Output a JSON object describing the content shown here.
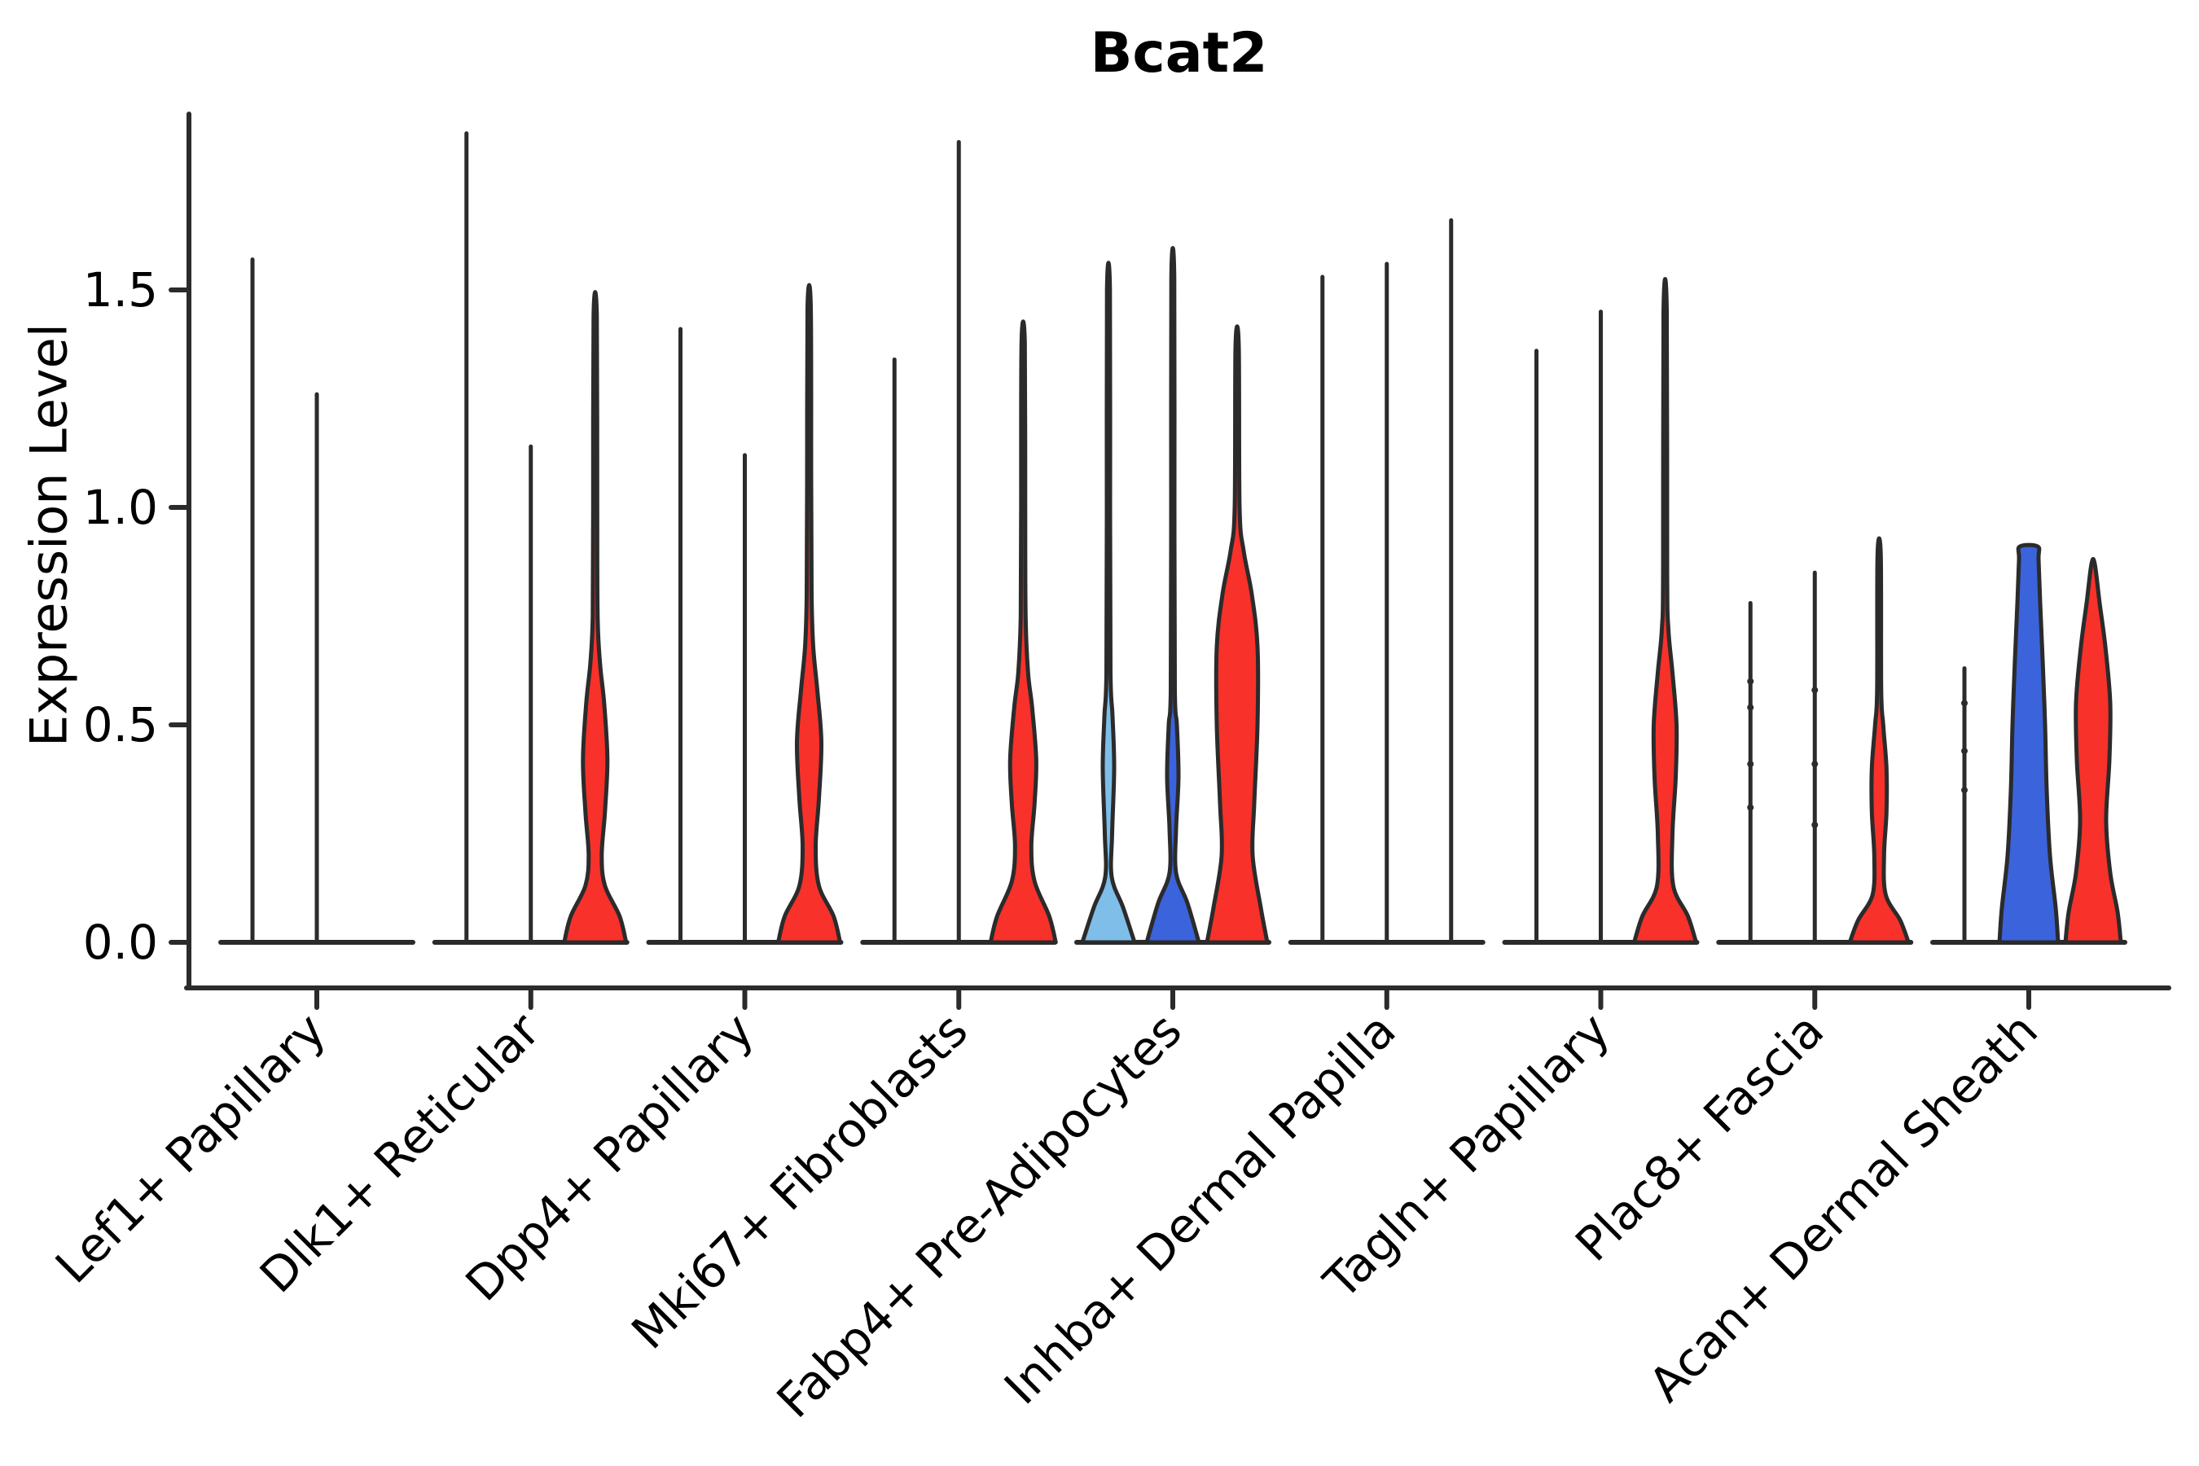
{
  "chart_data": {
    "type": "violin",
    "title": "Bcat2",
    "ylabel": "Expression Level",
    "ylim": [
      0,
      1.9
    ],
    "y_ticks": [
      0.0,
      0.5,
      1.0,
      1.5
    ],
    "y_tick_labels": [
      "0.0",
      "0.5",
      "1.0",
      "1.5"
    ],
    "grid": false,
    "legend": "none",
    "categories": [
      "Lef1+ Papillary",
      "Dlk1+ Reticular",
      "Dpp4+ Papillary",
      "Mki67+ Fibroblasts",
      "Fabp4+ Pre-Adipocytes",
      "Inhba+ Dermal Papilla",
      "Tagln+ Papillary",
      "Plac8+ Fascia",
      "Acan+ Dermal Sheath"
    ],
    "groups": [
      {
        "category": "Lef1+ Papillary",
        "violins": [
          {
            "shape": "spike",
            "max": 1.57,
            "fill": "none"
          },
          {
            "shape": "spike",
            "max": 1.26,
            "fill": "none"
          },
          {
            "shape": "flat",
            "max": 0.0,
            "fill": "none"
          }
        ]
      },
      {
        "category": "Dlk1+ Reticular",
        "violins": [
          {
            "shape": "spike",
            "max": 1.86,
            "fill": "none"
          },
          {
            "shape": "spike",
            "max": 1.14,
            "fill": "none"
          },
          {
            "shape": "violin",
            "max": 1.44,
            "fill": "red",
            "profile": [
              [
                0,
                38
              ],
              [
                0.06,
                30
              ],
              [
                0.13,
                12
              ],
              [
                0.2,
                8
              ],
              [
                0.3,
                12
              ],
              [
                0.42,
                15
              ],
              [
                0.55,
                11
              ],
              [
                0.64,
                6
              ],
              [
                0.75,
                3
              ],
              [
                1.0,
                2.5
              ],
              [
                1.44,
                2
              ]
            ]
          }
        ]
      },
      {
        "category": "Dpp4+ Papillary",
        "violins": [
          {
            "shape": "spike",
            "max": 1.41,
            "fill": "none"
          },
          {
            "shape": "spike",
            "max": 1.12,
            "fill": "none"
          },
          {
            "shape": "violin",
            "max": 1.46,
            "fill": "red",
            "profile": [
              [
                0,
                38
              ],
              [
                0.06,
                30
              ],
              [
                0.13,
                12
              ],
              [
                0.22,
                8
              ],
              [
                0.33,
                12
              ],
              [
                0.46,
                15
              ],
              [
                0.58,
                10
              ],
              [
                0.68,
                5
              ],
              [
                0.8,
                3
              ],
              [
                1.05,
                2.5
              ],
              [
                1.46,
                2
              ]
            ]
          }
        ]
      },
      {
        "category": "Mki67+ Fibroblasts",
        "violins": [
          {
            "shape": "spike",
            "max": 1.34,
            "fill": "none"
          },
          {
            "shape": "spike",
            "max": 1.84,
            "fill": "none"
          },
          {
            "shape": "violin",
            "max": 1.38,
            "fill": "red",
            "profile": [
              [
                0,
                40
              ],
              [
                0.06,
                32
              ],
              [
                0.14,
                14
              ],
              [
                0.22,
                10
              ],
              [
                0.32,
                14
              ],
              [
                0.42,
                16
              ],
              [
                0.54,
                11
              ],
              [
                0.62,
                6
              ],
              [
                0.75,
                3
              ],
              [
                1.0,
                2.5
              ],
              [
                1.38,
                2
              ]
            ]
          }
        ]
      },
      {
        "category": "Fabp4+ Pre-Adipocytes",
        "violins": [
          {
            "shape": "violin",
            "max": 1.5,
            "fill": "lightblue",
            "profile": [
              [
                0,
                32
              ],
              [
                0.08,
                18
              ],
              [
                0.15,
                4
              ],
              [
                0.25,
                4.5
              ],
              [
                0.4,
                7
              ],
              [
                0.52,
                5
              ],
              [
                0.62,
                2.5
              ],
              [
                1.0,
                2
              ],
              [
                1.5,
                1.8
              ]
            ]
          },
          {
            "shape": "violin",
            "max": 1.53,
            "fill": "blue",
            "profile": [
              [
                0,
                32
              ],
              [
                0.09,
                18
              ],
              [
                0.16,
                4
              ],
              [
                0.26,
                4
              ],
              [
                0.38,
                7
              ],
              [
                0.5,
                5
              ],
              [
                0.58,
                2.5
              ],
              [
                1.0,
                2
              ],
              [
                1.53,
                1.8
              ]
            ]
          },
          {
            "shape": "violin",
            "max": 1.37,
            "fill": "red",
            "profile": [
              [
                0,
                37
              ],
              [
                0.08,
                29
              ],
              [
                0.2,
                19
              ],
              [
                0.32,
                21
              ],
              [
                0.5,
                25
              ],
              [
                0.68,
                25
              ],
              [
                0.8,
                18
              ],
              [
                0.9,
                8
              ],
              [
                1.0,
                3
              ],
              [
                1.37,
                2
              ]
            ]
          }
        ]
      },
      {
        "category": "Inhba+ Dermal Papilla",
        "violins": [
          {
            "shape": "spike",
            "max": 1.53,
            "fill": "none"
          },
          {
            "shape": "spike",
            "max": 1.56,
            "fill": "none"
          },
          {
            "shape": "spike",
            "max": 1.66,
            "fill": "none"
          }
        ]
      },
      {
        "category": "Tagln+ Papillary",
        "violins": [
          {
            "shape": "spike",
            "max": 1.36,
            "fill": "none"
          },
          {
            "shape": "spike",
            "max": 1.45,
            "fill": "none"
          },
          {
            "shape": "violin",
            "max": 1.45,
            "fill": "red",
            "profile": [
              [
                0,
                38
              ],
              [
                0.06,
                28
              ],
              [
                0.13,
                10
              ],
              [
                0.25,
                9
              ],
              [
                0.38,
                13
              ],
              [
                0.5,
                14
              ],
              [
                0.62,
                9
              ],
              [
                0.72,
                4
              ],
              [
                0.85,
                2.5
              ],
              [
                1.45,
                2
              ]
            ]
          }
        ]
      },
      {
        "category": "Plac8+ Fascia",
        "violins": [
          {
            "shape": "spike",
            "max": 0.78,
            "fill": "none",
            "points": [
              0.6,
              0.54,
              0.41,
              0.31
            ]
          },
          {
            "shape": "spike",
            "max": 0.85,
            "fill": "none",
            "points": [
              0.58,
              0.41,
              0.27
            ]
          },
          {
            "shape": "violin",
            "max": 0.89,
            "fill": "red",
            "profile": [
              [
                0,
                36
              ],
              [
                0.05,
                26
              ],
              [
                0.11,
                8
              ],
              [
                0.2,
                6
              ],
              [
                0.3,
                9
              ],
              [
                0.4,
                9
              ],
              [
                0.5,
                5
              ],
              [
                0.58,
                2.5
              ],
              [
                0.89,
                2
              ]
            ]
          }
        ]
      },
      {
        "category": "Acan+ Dermal Sheath",
        "violins": [
          {
            "shape": "spike",
            "max": 0.63,
            "fill": "none",
            "points": [
              0.55,
              0.44,
              0.35
            ]
          },
          {
            "shape": "violin",
            "max": 0.91,
            "fill": "blue",
            "profile": [
              [
                0,
                36
              ],
              [
                0.08,
                33
              ],
              [
                0.2,
                26
              ],
              [
                0.35,
                22
              ],
              [
                0.5,
                20
              ],
              [
                0.65,
                17
              ],
              [
                0.78,
                14
              ],
              [
                0.88,
                12
              ],
              [
                0.91,
                11
              ]
            ]
          },
          {
            "shape": "violin",
            "max": 0.87,
            "fill": "red",
            "profile": [
              [
                0,
                34
              ],
              [
                0.07,
                30
              ],
              [
                0.16,
                21
              ],
              [
                0.28,
                16
              ],
              [
                0.42,
                20
              ],
              [
                0.55,
                21
              ],
              [
                0.68,
                15
              ],
              [
                0.78,
                8
              ],
              [
                0.87,
                2
              ]
            ]
          }
        ]
      }
    ]
  },
  "style": {
    "outline_color": "#2b2b2b",
    "red": "#f8312b",
    "blue": "#3b63dc",
    "lightblue": "#7fbee9",
    "text_color": "#000000",
    "background": "#ffffff"
  }
}
